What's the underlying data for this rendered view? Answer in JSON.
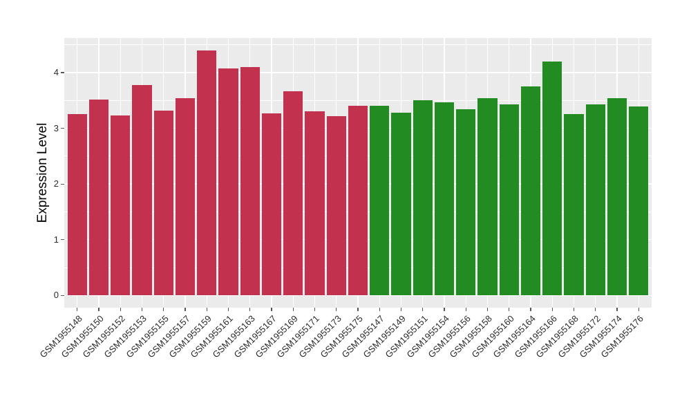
{
  "chart_data": {
    "type": "bar",
    "title": "",
    "xlabel": "",
    "ylabel": "Expression Level",
    "y_domain": [
      -0.22,
      4.62
    ],
    "yticks": [
      0,
      1,
      2,
      3,
      4
    ],
    "yticks_minor": [
      0.5,
      1.5,
      2.5,
      3.5,
      4.5
    ],
    "legend": "none",
    "grid": "white major+minor horizontal lines and vertical category lines on gray panel",
    "group_colors": {
      "group1": "#C2324E",
      "group2": "#228B22"
    },
    "bars": [
      {
        "label": "GSM1955148",
        "value": 3.26,
        "group": "group1"
      },
      {
        "label": "GSM1955150",
        "value": 3.52,
        "group": "group1"
      },
      {
        "label": "GSM1955152",
        "value": 3.23,
        "group": "group1"
      },
      {
        "label": "GSM1955153",
        "value": 3.78,
        "group": "group1"
      },
      {
        "label": "GSM1955155",
        "value": 3.32,
        "group": "group1"
      },
      {
        "label": "GSM1955157",
        "value": 3.54,
        "group": "group1"
      },
      {
        "label": "GSM1955159",
        "value": 4.4,
        "group": "group1"
      },
      {
        "label": "GSM1955161",
        "value": 4.08,
        "group": "group1"
      },
      {
        "label": "GSM1955163",
        "value": 4.1,
        "group": "group1"
      },
      {
        "label": "GSM1955167",
        "value": 3.27,
        "group": "group1"
      },
      {
        "label": "GSM1955169",
        "value": 3.67,
        "group": "group1"
      },
      {
        "label": "GSM1955171",
        "value": 3.31,
        "group": "group1"
      },
      {
        "label": "GSM1955173",
        "value": 3.22,
        "group": "group1"
      },
      {
        "label": "GSM1955175",
        "value": 3.4,
        "group": "group1"
      },
      {
        "label": "GSM1955147",
        "value": 3.4,
        "group": "group2"
      },
      {
        "label": "GSM1955149",
        "value": 3.28,
        "group": "group2"
      },
      {
        "label": "GSM1955151",
        "value": 3.5,
        "group": "group2"
      },
      {
        "label": "GSM1955154",
        "value": 3.47,
        "group": "group2"
      },
      {
        "label": "GSM1955156",
        "value": 3.34,
        "group": "group2"
      },
      {
        "label": "GSM1955158",
        "value": 3.54,
        "group": "group2"
      },
      {
        "label": "GSM1955160",
        "value": 3.43,
        "group": "group2"
      },
      {
        "label": "GSM1955164",
        "value": 3.75,
        "group": "group2"
      },
      {
        "label": "GSM1955166",
        "value": 4.2,
        "group": "group2"
      },
      {
        "label": "GSM1955168",
        "value": 3.25,
        "group": "group2"
      },
      {
        "label": "GSM1955172",
        "value": 3.43,
        "group": "group2"
      },
      {
        "label": "GSM1955174",
        "value": 3.54,
        "group": "group2"
      },
      {
        "label": "GSM1955176",
        "value": 3.39,
        "group": "group2"
      }
    ]
  },
  "style": {
    "panel_bg": "#EBEBEB",
    "grid_color": "#FFFFFF",
    "tick_mark_color": "#555555",
    "tick_label_color": "#2b2b2b",
    "axis_title_color": "#000000",
    "figure_bg": "#FFFFFF"
  }
}
